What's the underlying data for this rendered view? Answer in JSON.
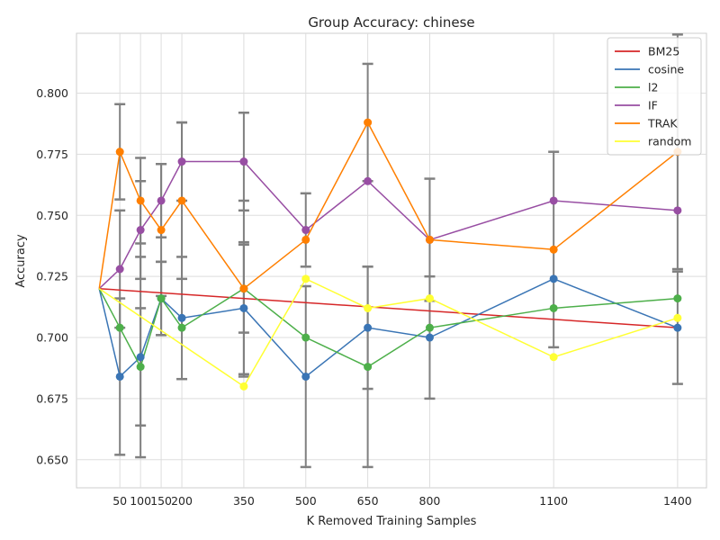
{
  "chart_data": {
    "type": "line",
    "title": "Group Accuracy: chinese",
    "xlabel": "K Removed Training Samples",
    "ylabel": "Accuracy",
    "x_ticks": [
      50,
      100,
      150,
      200,
      350,
      500,
      650,
      800,
      1100,
      1400
    ],
    "y_ticks": [
      "0.650",
      "0.675",
      "0.700",
      "0.725",
      "0.750",
      "0.775",
      "0.800"
    ],
    "xlim": [
      -55,
      1470
    ],
    "ylim": [
      0.6385,
      0.8245
    ],
    "grid": true,
    "legend_position": "top-right",
    "x": [
      0,
      50,
      100,
      150,
      200,
      350,
      500,
      650,
      800,
      1100,
      1400
    ],
    "series": [
      {
        "name": "BM25",
        "color": "#d62728",
        "markers": false,
        "x": [
          0,
          1400
        ],
        "values": [
          0.72,
          0.704
        ],
        "errors": []
      },
      {
        "name": "cosine",
        "color": "#3a75b5",
        "markers": true,
        "values": [
          0.72,
          0.684,
          0.692,
          0.716,
          0.708,
          0.712,
          0.684,
          0.704,
          0.7,
          0.724,
          0.704
        ],
        "errors": [
          null,
          0.032,
          0.041,
          0.015,
          0.025,
          0.027,
          0.037,
          0.025,
          0.025,
          0.0,
          0.023
        ]
      },
      {
        "name": "l2",
        "color": "#4daf4a",
        "markers": true,
        "values": [
          0.72,
          0.704,
          0.688,
          0.716,
          0.704,
          0.72,
          0.7,
          0.688,
          0.704,
          0.712,
          0.716
        ],
        "errors": [
          null,
          0.0,
          0.024,
          0.015,
          0.0,
          0.018,
          0.0,
          0.041,
          0.0,
          0.0,
          0.0
        ]
      },
      {
        "name": "IF",
        "color": "#984ea3",
        "markers": true,
        "values": [
          0.72,
          0.728,
          0.744,
          0.756,
          0.772,
          0.772,
          0.744,
          0.764,
          0.74,
          0.756,
          0.752
        ],
        "errors": [
          null,
          0.024,
          0.02,
          0.015,
          0.016,
          0.02,
          0.015,
          0.0,
          0.0,
          0.0,
          0.0
        ]
      },
      {
        "name": "TRAK",
        "color": "#ff7f00",
        "markers": true,
        "values": [
          0.72,
          0.776,
          0.756,
          0.744,
          0.756,
          0.72,
          0.74,
          0.788,
          0.74,
          0.736,
          0.776
        ],
        "errors": [
          null,
          0.0195,
          0.0175,
          0.027,
          0.032,
          0.036,
          0.0,
          0.024,
          0.025,
          0.04,
          0.048
        ]
      },
      {
        "name": "random",
        "color": "#ffff33",
        "markers": true,
        "values": [
          0.72,
          null,
          null,
          null,
          null,
          0.68,
          0.724,
          0.712,
          0.716,
          0.692,
          0.708
        ],
        "errors": [
          null,
          null,
          null,
          null,
          null,
          0.0,
          0.0,
          0.0,
          0.0,
          0.0,
          0.0
        ]
      }
    ]
  }
}
